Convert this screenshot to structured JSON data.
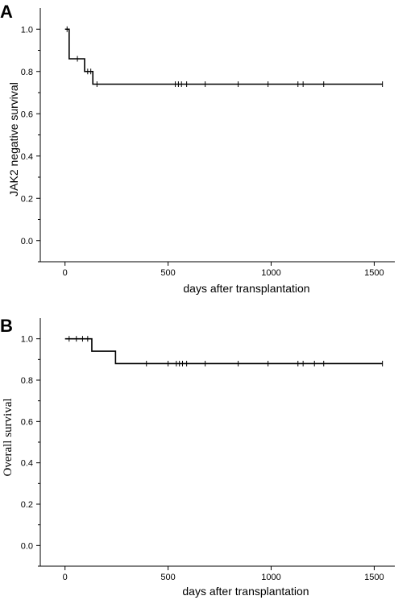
{
  "chart_data": [
    {
      "type": "line",
      "subtype": "kaplan-meier-step",
      "panel_label": "A",
      "title": "",
      "xlabel": "days after transplantation",
      "ylabel": "JAK2 negative survival",
      "xlim": [
        -120,
        1600
      ],
      "ylim": [
        -0.1,
        1.1
      ],
      "xticks": [
        0,
        500,
        1000,
        1500
      ],
      "yticks": [
        0.0,
        0.2,
        0.4,
        0.6,
        0.8,
        1.0
      ],
      "grid": false,
      "series": [
        {
          "steps": [
            {
              "x": 0,
              "y": 1.0
            },
            {
              "x": 20,
              "y": 0.86
            },
            {
              "x": 95,
              "y": 0.8
            },
            {
              "x": 135,
              "y": 0.74
            },
            {
              "x": 1540,
              "y": 0.74
            }
          ],
          "censored": [
            {
              "x": 10,
              "y": 1.0
            },
            {
              "x": 60,
              "y": 0.86
            },
            {
              "x": 110,
              "y": 0.8
            },
            {
              "x": 125,
              "y": 0.8
            },
            {
              "x": 155,
              "y": 0.74
            },
            {
              "x": 535,
              "y": 0.74
            },
            {
              "x": 550,
              "y": 0.74
            },
            {
              "x": 565,
              "y": 0.74
            },
            {
              "x": 590,
              "y": 0.74
            },
            {
              "x": 680,
              "y": 0.74
            },
            {
              "x": 840,
              "y": 0.74
            },
            {
              "x": 985,
              "y": 0.74
            },
            {
              "x": 1130,
              "y": 0.74
            },
            {
              "x": 1155,
              "y": 0.74
            },
            {
              "x": 1255,
              "y": 0.74
            },
            {
              "x": 1540,
              "y": 0.74
            }
          ]
        }
      ]
    },
    {
      "type": "line",
      "subtype": "kaplan-meier-step",
      "panel_label": "B",
      "title": "",
      "xlabel": "days after transplantation",
      "ylabel": "Overall survival",
      "xlim": [
        -120,
        1600
      ],
      "ylim": [
        -0.1,
        1.1
      ],
      "xticks": [
        0,
        500,
        1000,
        1500
      ],
      "yticks": [
        0.0,
        0.2,
        0.4,
        0.6,
        0.8,
        1.0
      ],
      "grid": false,
      "series": [
        {
          "steps": [
            {
              "x": 0,
              "y": 1.0
            },
            {
              "x": 130,
              "y": 0.94
            },
            {
              "x": 245,
              "y": 0.88
            },
            {
              "x": 1540,
              "y": 0.88
            }
          ],
          "censored": [
            {
              "x": 20,
              "y": 1.0
            },
            {
              "x": 55,
              "y": 1.0
            },
            {
              "x": 85,
              "y": 1.0
            },
            {
              "x": 110,
              "y": 1.0
            },
            {
              "x": 395,
              "y": 0.88
            },
            {
              "x": 500,
              "y": 0.88
            },
            {
              "x": 540,
              "y": 0.88
            },
            {
              "x": 555,
              "y": 0.88
            },
            {
              "x": 570,
              "y": 0.88
            },
            {
              "x": 590,
              "y": 0.88
            },
            {
              "x": 680,
              "y": 0.88
            },
            {
              "x": 840,
              "y": 0.88
            },
            {
              "x": 985,
              "y": 0.88
            },
            {
              "x": 1130,
              "y": 0.88
            },
            {
              "x": 1155,
              "y": 0.88
            },
            {
              "x": 1210,
              "y": 0.88
            },
            {
              "x": 1255,
              "y": 0.88
            },
            {
              "x": 1540,
              "y": 0.88
            }
          ]
        }
      ]
    }
  ]
}
